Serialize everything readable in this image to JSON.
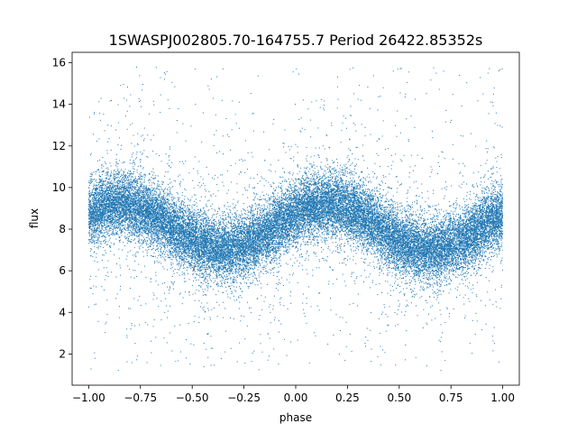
{
  "chart_data": {
    "type": "scatter",
    "title": "1SWASPJ002805.70-164755.7 Period 26422.85352s",
    "xlabel": "phase",
    "ylabel": "flux",
    "xlim": [
      -1.08,
      1.08
    ],
    "ylim": [
      0.5,
      16.5
    ],
    "xticks": [
      -1.0,
      -0.75,
      -0.5,
      -0.25,
      0.0,
      0.25,
      0.5,
      0.75,
      1.0
    ],
    "xtick_labels": [
      "−1.00",
      "−0.75",
      "−0.50",
      "−0.25",
      "0.00",
      "0.25",
      "0.50",
      "0.75",
      "1.00"
    ],
    "yticks": [
      2,
      4,
      6,
      8,
      10,
      12,
      14,
      16
    ],
    "ytick_labels": [
      "2",
      "4",
      "6",
      "8",
      "10",
      "12",
      "14",
      "16"
    ],
    "grid": false,
    "legend": "none",
    "point_color": "#1f77b4",
    "series": [
      {
        "x_range": [
          -1.0,
          1.0
        ],
        "y_range": [
          1.2,
          15.8
        ],
        "trend": "sinusoidal, two cycles over phase -1 to 1",
        "mean_flux": 8.1,
        "amplitude": 1.1,
        "maxima_phase": [
          -0.85,
          0.15
        ],
        "minima_phase": [
          -0.35,
          0.65
        ],
        "point_count": 30000
      }
    ]
  }
}
